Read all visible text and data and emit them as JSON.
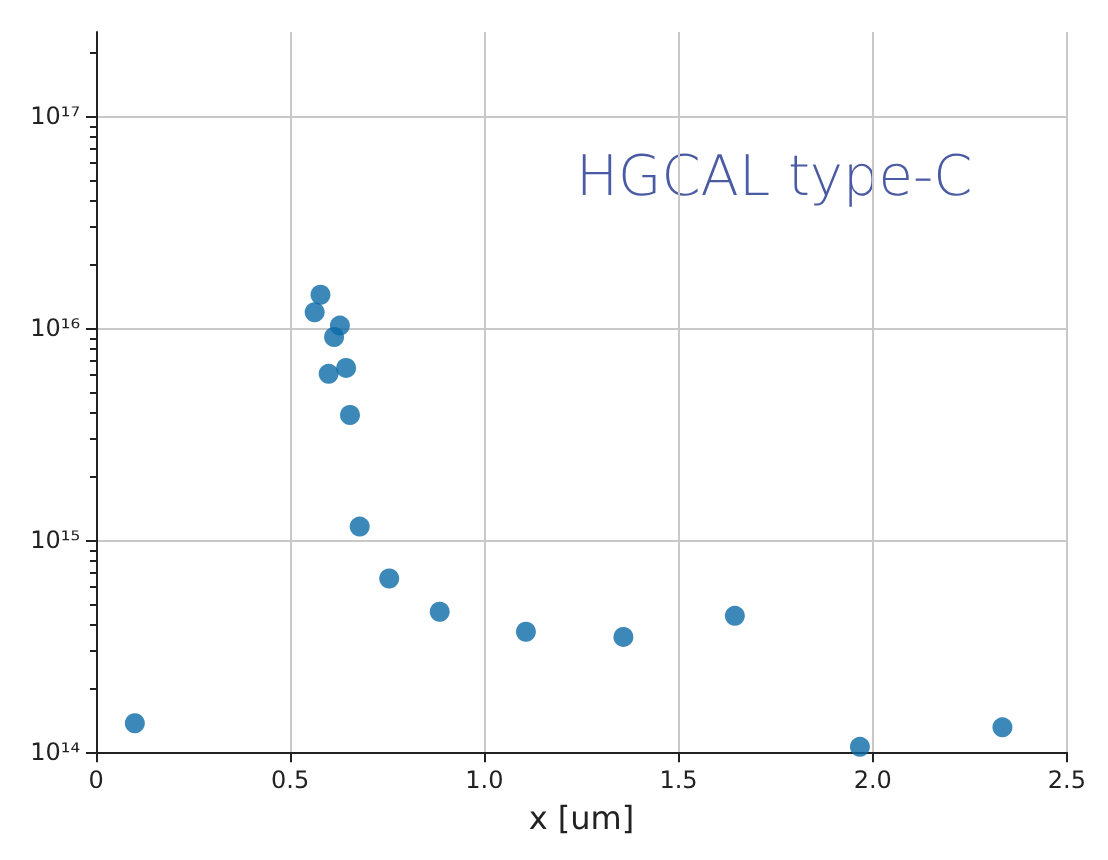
{
  "chart_data": {
    "type": "scatter",
    "xlabel": "x [um]",
    "annotations": [
      "HGCAL type-C"
    ],
    "x": [
      0.1,
      0.563,
      0.578,
      0.599,
      0.613,
      0.628,
      0.644,
      0.654,
      0.679,
      0.755,
      0.885,
      1.107,
      1.358,
      1.645,
      1.967,
      2.334
    ],
    "series": [
      {
        "color": "#0b6aa8",
        "values": [
          137000000000000.0,
          1.19e+16,
          1.44e+16,
          6100000000000000.0,
          9100000000000000.0,
          1.03e+16,
          6500000000000000.0,
          3900000000000000.0,
          1160000000000000.0,
          660000000000000.0,
          460000000000000.0,
          370000000000000.0,
          350000000000000.0,
          440000000000000.0,
          106000000000000.0,
          131000000000000.0
        ]
      }
    ],
    "xlim": [
      0,
      2.5
    ],
    "xticks": [
      0,
      {
        "value": 0.5,
        "label": "0.5"
      },
      {
        "value": 1,
        "label": "1.0"
      },
      {
        "value": 1.5,
        "label": "1.5"
      },
      {
        "value": 2,
        "label": "2.0"
      },
      {
        "value": 2.5,
        "label": "2.5"
      }
    ],
    "ylim": [
      100000000000000.0,
      2.5e+17
    ],
    "yticks": [
      {
        "value": 100000000000000.0,
        "label": "10¹⁴"
      },
      {
        "value": 1000000000000000.0,
        "label": "10¹⁵"
      },
      {
        "value": 1e+16,
        "label": "10¹⁶"
      },
      {
        "value": 1e+17,
        "label": "10¹⁷"
      }
    ],
    "log": "y",
    "grid": true,
    "marker": "circle"
  }
}
